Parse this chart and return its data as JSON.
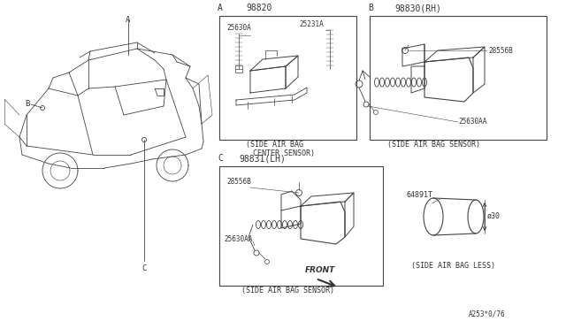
{
  "bg_color": "#ffffff",
  "line_color": "#444444",
  "text_color": "#333333",
  "fig_width": 6.4,
  "fig_height": 3.72,
  "sections": {
    "A_label": "A",
    "A_part": "98820",
    "A_caption1": "(SIDE AIR BAG",
    "A_caption2": "CENTER SENSOR)",
    "A_part1": "25630A",
    "A_part2": "25231A",
    "B_label": "B",
    "B_part": "98830(RH)",
    "B_caption": "(SIDE AIR BAG SENSOR)",
    "B_part1": "28556B",
    "B_part2": "25630AA",
    "C_label": "C",
    "C_part": "98831(LH)",
    "C_caption": "(SIDE AIR BAG SENSOR)",
    "C_part1": "28556B",
    "C_part2": "25630AA",
    "C_front": "FRONT",
    "D_part": "64891T",
    "D_dim": "ø30",
    "D_caption": "(SIDE AIR BAG LESS)",
    "footer": "A253*0/76",
    "car_labels": [
      "A",
      "B",
      "C"
    ]
  }
}
